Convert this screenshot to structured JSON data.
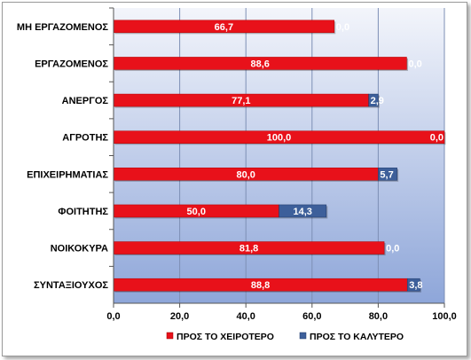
{
  "chart_data": {
    "type": "bar",
    "orientation": "horizontal",
    "stacked": true,
    "categories": [
      "ΜΗ ΕΡΓΑΖΟΜΕΝΟΣ",
      "ΕΡΓΑΖΟΜΕΝΟΣ",
      "ΑΝΕΡΓΟΣ",
      "ΑΓΡΟΤΗΣ",
      "ΕΠΙΧΕΙΡΗΜΑΤΙΑΣ",
      "ΦΟΙΤΗΤΗΣ",
      "ΝΟΙΚΟΚΥΡΑ",
      "ΣΥΝΤΑΞΙΟΥΧΟΣ"
    ],
    "series": [
      {
        "name": "ΠΡΟΣ ΤΟ ΧΕΙΡΟΤΕΡΟ",
        "color": "#e8111a",
        "values": [
          66.7,
          88.6,
          77.1,
          100.0,
          80.0,
          50.0,
          81.8,
          88.8
        ],
        "labels": [
          "66,7",
          "88,6",
          "77,1",
          "100,0",
          "80,0",
          "50,0",
          "81,8",
          "88,8"
        ]
      },
      {
        "name": "ΠΡΟΣ ΤΟ ΚΑΛΥΤΕΡΟ",
        "color": "#3d5f9a",
        "values": [
          0.0,
          0.0,
          2.9,
          0.0,
          5.7,
          14.3,
          0.0,
          3.8
        ],
        "labels": [
          "0,0",
          "0,0",
          "2,9",
          "0,0",
          "5,7",
          "14,3",
          "0,0",
          "3,8"
        ]
      }
    ],
    "xlim": [
      0,
      100
    ],
    "xticks": [
      "0,0",
      "20,0",
      "40,0",
      "60,0",
      "80,0",
      "100,0"
    ],
    "grid": true,
    "legend": "bottom",
    "title": "",
    "xlabel": "",
    "ylabel": ""
  }
}
